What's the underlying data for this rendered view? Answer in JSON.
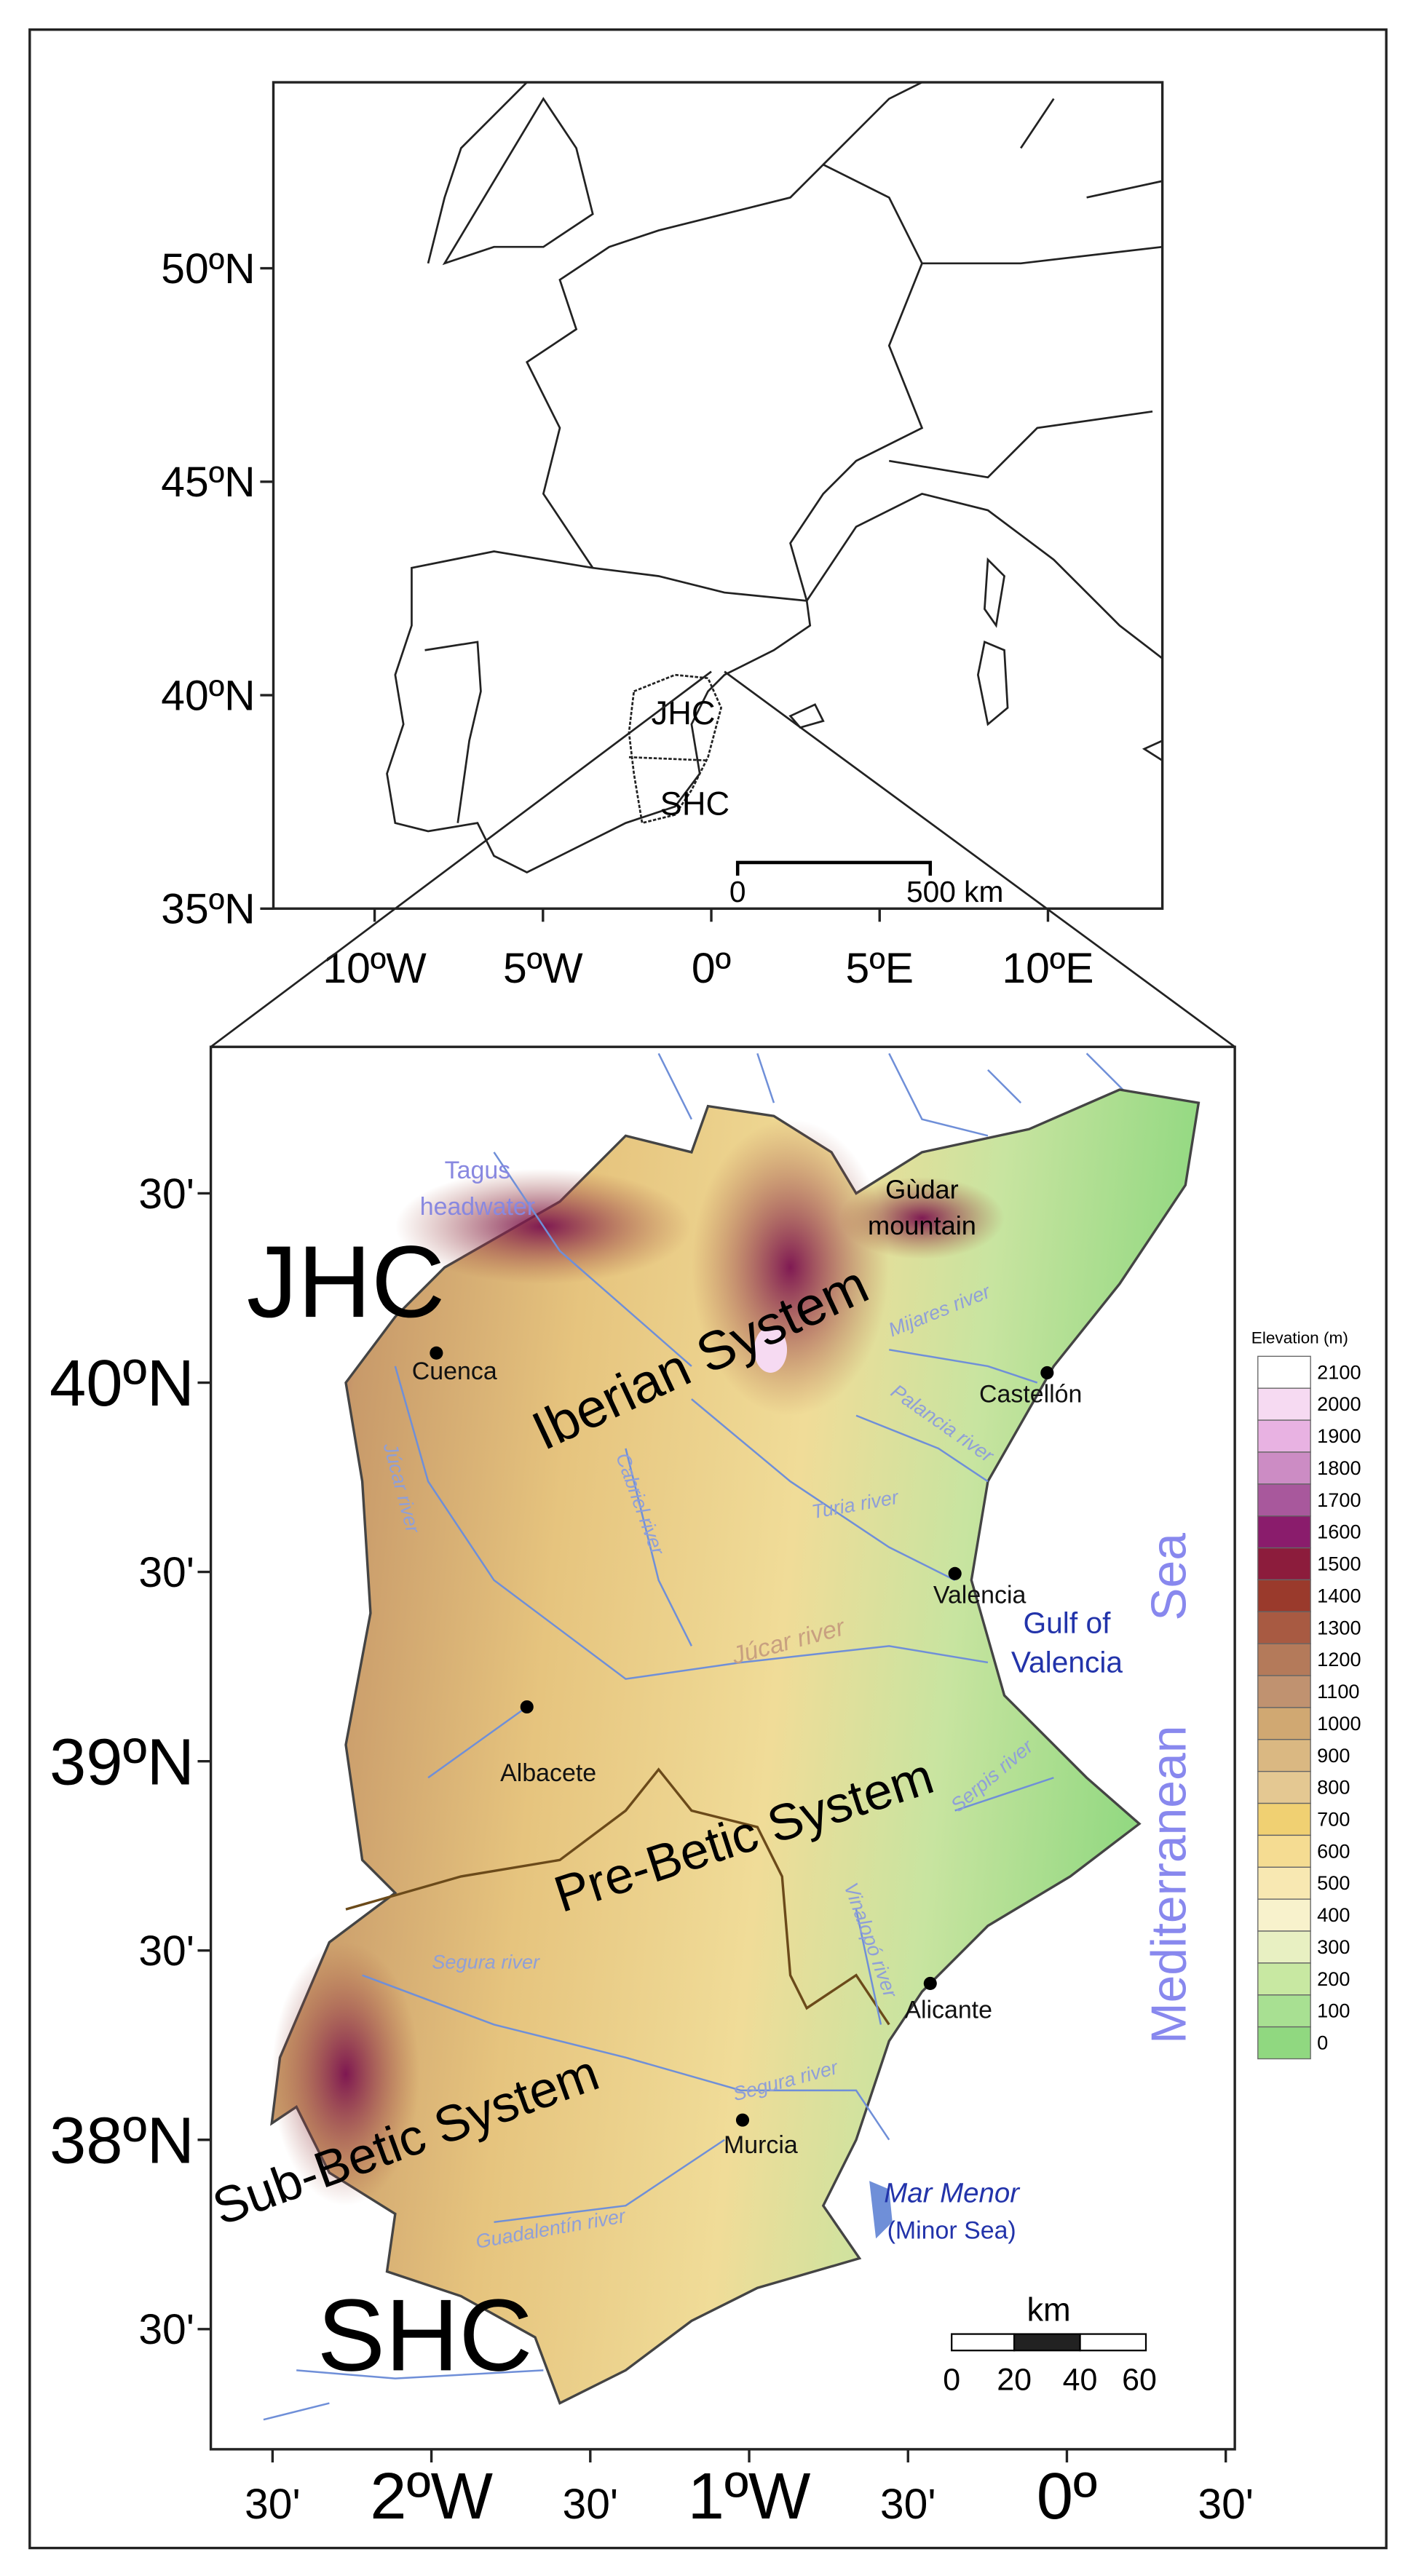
{
  "inset_map": {
    "lat_ticks": [
      {
        "value": 50,
        "label": "50ºN"
      },
      {
        "value": 45,
        "label": "45ºN"
      },
      {
        "value": 40,
        "label": "40ºN"
      },
      {
        "value": 35,
        "label": "35ºN"
      }
    ],
    "lon_ticks": [
      {
        "value": -10,
        "label": "10ºW"
      },
      {
        "value": -5,
        "label": "5ºW"
      },
      {
        "value": 0,
        "label": "0º"
      },
      {
        "value": 5,
        "label": "5ºE"
      },
      {
        "value": 10,
        "label": "10ºE"
      }
    ],
    "labels": {
      "jhc": "JHC",
      "shc": "SHC"
    },
    "scale_bar": {
      "start": "0",
      "end": "500 km"
    }
  },
  "main_map": {
    "lat_ticks": [
      {
        "value": 40.5,
        "label": "30'"
      },
      {
        "value": 40,
        "label": "40ºN"
      },
      {
        "value": 39.5,
        "label": "30'"
      },
      {
        "value": 39,
        "label": "39ºN"
      },
      {
        "value": 38.5,
        "label": "30'"
      },
      {
        "value": 38,
        "label": "38ºN"
      },
      {
        "value": 37.5,
        "label": "30'"
      }
    ],
    "lon_ticks": [
      {
        "value": -2.5,
        "label": "30'"
      },
      {
        "value": -2,
        "label": "2ºW"
      },
      {
        "value": -1.5,
        "label": "30'"
      },
      {
        "value": -1,
        "label": "1ºW"
      },
      {
        "value": -0.5,
        "label": "30'"
      },
      {
        "value": 0,
        "label": "0º"
      },
      {
        "value": 0.5,
        "label": "30'"
      }
    ],
    "regions": {
      "jhc": "JHC",
      "shc": "SHC"
    },
    "features": {
      "tagus": [
        "Tagus",
        "headwater"
      ],
      "gudar": [
        "Gùdar",
        "mountain"
      ],
      "iberian": "Iberian System",
      "prebetic": "Pre-Betic System",
      "subbetic": "Sub-Betic System",
      "gulf": [
        "Gulf of",
        "Valencia"
      ],
      "mar_menor": [
        "Mar Menor",
        "(Minor Sea)"
      ],
      "sea": [
        "Mediterranean",
        "Sea"
      ]
    },
    "cities": {
      "cuenca": "Cuenca",
      "castellon": "Castellón",
      "valencia": "Valencia",
      "albacete": "Albacete",
      "alicante": "Alicante",
      "murcia": "Murcia"
    },
    "rivers": {
      "mijares": "Mijares river",
      "palancia": "Palancia river",
      "jucar_upper": "Júcar river",
      "cabriel": "Cabriel river",
      "turia": "Turia river",
      "jucar": "Júcar river",
      "serpis": "Serpis river",
      "segura_upper": "Segura river",
      "vinalopo": "Vinalopó river",
      "segura": "Segura river",
      "guadalentin": "Guadalentín river"
    },
    "scale_bar": {
      "unit": "km",
      "ticks": [
        "0",
        "20",
        "40",
        "60"
      ]
    }
  },
  "legend": {
    "title": "Elevation (m)",
    "items": [
      {
        "value": 2100,
        "color": "#ffffff"
      },
      {
        "value": 2000,
        "color": "#f6daf2"
      },
      {
        "value": 1900,
        "color": "#e8b2e2"
      },
      {
        "value": 1800,
        "color": "#cc8cc4"
      },
      {
        "value": 1700,
        "color": "#a8589c"
      },
      {
        "value": 1600,
        "color": "#8a1c6c"
      },
      {
        "value": 1500,
        "color": "#8c1c3c"
      },
      {
        "value": 1400,
        "color": "#9a3a2c"
      },
      {
        "value": 1300,
        "color": "#a85a42"
      },
      {
        "value": 1200,
        "color": "#b47a5a"
      },
      {
        "value": 1100,
        "color": "#c09270"
      },
      {
        "value": 1000,
        "color": "#d0a872"
      },
      {
        "value": 900,
        "color": "#dab882"
      },
      {
        "value": 800,
        "color": "#e4c892"
      },
      {
        "value": 700,
        "color": "#f0d072"
      },
      {
        "value": 600,
        "color": "#f5dc92"
      },
      {
        "value": 500,
        "color": "#f8e8b2"
      },
      {
        "value": 400,
        "color": "#f8f2cc"
      },
      {
        "value": 300,
        "color": "#e8f0c2"
      },
      {
        "value": 200,
        "color": "#c8e8a2"
      },
      {
        "value": 100,
        "color": "#a8e092"
      },
      {
        "value": 0,
        "color": "#90d880"
      }
    ]
  }
}
